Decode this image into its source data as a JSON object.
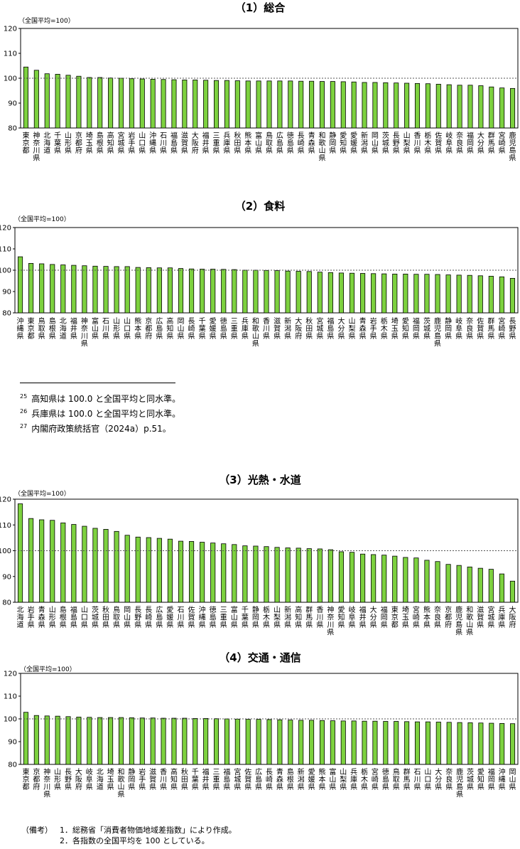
{
  "chart_data": [
    {
      "type": "bar",
      "title": "（1）総合",
      "note": "（全国平均=100）",
      "ylim": [
        80,
        120
      ],
      "yticks": [
        80,
        90,
        100,
        110,
        120
      ],
      "reference_line": 100,
      "categories": [
        "東京都",
        "神奈川県",
        "北海道",
        "千葉県",
        "山形県",
        "京都府",
        "埼玉県",
        "島根県",
        "高知県",
        "宮城県",
        "岩手県",
        "山口県",
        "沖縄県",
        "石川県",
        "福島県",
        "滋賀県",
        "大阪府",
        "福井県",
        "三重県",
        "兵庫県",
        "秋田県",
        "熊本県",
        "富山県",
        "鳥取県",
        "広島県",
        "徳島県",
        "長崎県",
        "青森県",
        "和歌山県",
        "静岡県",
        "愛知県",
        "愛媛県",
        "新潟県",
        "岡山県",
        "茨城県",
        "長野県",
        "山梨県",
        "香川県",
        "栃木県",
        "佐賀県",
        "岐阜県",
        "奈良県",
        "福岡県",
        "大分県",
        "群馬県",
        "宮崎県",
        "鹿児島県"
      ],
      "values": [
        104.5,
        103.2,
        101.8,
        101.6,
        101.2,
        100.8,
        100.3,
        100.3,
        100.1,
        100.0,
        99.8,
        99.7,
        99.6,
        99.5,
        99.4,
        99.3,
        99.3,
        99.2,
        99.1,
        99.1,
        99.0,
        98.9,
        98.9,
        98.9,
        98.9,
        98.9,
        98.8,
        98.8,
        98.7,
        98.7,
        98.6,
        98.5,
        98.3,
        98.3,
        98.2,
        98.1,
        98.0,
        97.9,
        97.8,
        97.6,
        97.4,
        97.2,
        97.2,
        97.0,
        96.5,
        96.1,
        95.9
      ]
    },
    {
      "type": "bar",
      "title": "（2）食料",
      "note": "（全国平均=100）",
      "ylim": [
        80,
        120
      ],
      "yticks": [
        80,
        90,
        100,
        110,
        120
      ],
      "reference_line": 100,
      "categories": [
        "沖縄県",
        "東京都",
        "鳥取県",
        "島根県",
        "北海道",
        "福井県",
        "神奈川県",
        "富山県",
        "石川県",
        "山形県",
        "山口県",
        "熊本県",
        "京都府",
        "広島県",
        "高知県",
        "岡山県",
        "長崎県",
        "千葉県",
        "愛媛県",
        "徳島県",
        "三重県",
        "兵庫県",
        "和歌山県",
        "香川県",
        "滋賀県",
        "新潟県",
        "大阪府",
        "秋田県",
        "宮城県",
        "福島県",
        "大分県",
        "山梨県",
        "青森県",
        "岩手県",
        "栃木県",
        "埼玉県",
        "愛知県",
        "福岡県",
        "茨城県",
        "鹿児島県",
        "静岡県",
        "岐阜県",
        "奈良県",
        "佐賀県",
        "群馬県",
        "宮崎県",
        "長野県"
      ],
      "values": [
        106.3,
        103.2,
        103.0,
        102.7,
        102.5,
        102.3,
        102.1,
        101.9,
        101.8,
        101.7,
        101.7,
        101.3,
        101.2,
        101.1,
        101.1,
        100.8,
        100.6,
        100.5,
        100.5,
        100.4,
        100.3,
        100.0,
        100.0,
        99.9,
        99.8,
        99.6,
        99.5,
        99.4,
        99.1,
        98.9,
        98.7,
        98.6,
        98.5,
        98.4,
        98.3,
        98.2,
        98.2,
        98.1,
        98.1,
        98.0,
        97.8,
        97.7,
        97.6,
        97.4,
        97.2,
        96.9,
        96.2
      ]
    },
    {
      "type": "bar",
      "title": "（3）光熱・水道",
      "note": "（全国平均=100）",
      "ylim": [
        80,
        120
      ],
      "yticks": [
        80,
        90,
        100,
        110,
        120
      ],
      "reference_line": 100,
      "categories": [
        "北海道",
        "岩手県",
        "青森県",
        "山形県",
        "島根県",
        "福島県",
        "山口県",
        "茨城県",
        "秋田県",
        "鳥取県",
        "岡山県",
        "長野県",
        "長崎県",
        "広島県",
        "愛媛県",
        "石川県",
        "佐賀県",
        "沖縄県",
        "徳島県",
        "三重県",
        "富山県",
        "千葉県",
        "静岡県",
        "栃木県",
        "山梨県",
        "新潟県",
        "高知県",
        "群馬県",
        "香川県",
        "神奈川県",
        "愛知県",
        "岐阜県",
        "福井県",
        "大分県",
        "福岡県",
        "東京都",
        "埼玉県",
        "宮崎県",
        "熊本県",
        "奈良県",
        "京都府",
        "鹿児島県",
        "和歌山県",
        "滋賀県",
        "宮城県",
        "兵庫県",
        "大阪府"
      ],
      "values": [
        118.2,
        112.5,
        112.0,
        111.8,
        110.8,
        110.2,
        109.5,
        108.7,
        108.3,
        107.5,
        106.0,
        105.3,
        105.1,
        104.8,
        104.5,
        103.7,
        103.6,
        103.3,
        103.0,
        102.7,
        102.4,
        101.9,
        101.8,
        101.6,
        101.3,
        101.1,
        101.0,
        100.8,
        100.7,
        100.4,
        99.6,
        99.4,
        98.7,
        98.5,
        98.3,
        97.9,
        97.4,
        97.2,
        96.3,
        95.8,
        94.7,
        94.3,
        93.7,
        93.2,
        92.8,
        91.0,
        88.2
      ]
    },
    {
      "type": "bar",
      "title": "（4）交通・通信",
      "note": "（全国平均=100）",
      "ylim": [
        80,
        120
      ],
      "yticks": [
        80,
        90,
        100,
        110,
        120
      ],
      "reference_line": 100,
      "categories": [
        "東京都",
        "京都府",
        "神奈川県",
        "山形県",
        "長野県",
        "大阪府",
        "岐阜県",
        "北海道",
        "埼玉県",
        "和歌山県",
        "静岡県",
        "岩手県",
        "滋賀県",
        "香川県",
        "高知県",
        "秋田県",
        "千葉県",
        "福井県",
        "三重県",
        "福島県",
        "宮城県",
        "佐賀県",
        "広島県",
        "長崎県",
        "青森県",
        "島根県",
        "新潟県",
        "愛媛県",
        "熊本県",
        "富山県",
        "山梨県",
        "兵庫県",
        "栃木県",
        "宮崎県",
        "徳島県",
        "鳥取県",
        "群馬県",
        "石川県",
        "山口県",
        "大分県",
        "奈良県",
        "鹿児島県",
        "茨城県",
        "愛知県",
        "福岡県",
        "沖縄県",
        "岡山県"
      ],
      "values": [
        102.9,
        101.5,
        101.3,
        101.2,
        101.0,
        100.8,
        100.7,
        100.6,
        100.6,
        100.6,
        100.5,
        100.4,
        100.4,
        100.3,
        100.3,
        100.3,
        100.2,
        100.2,
        100.1,
        100.0,
        99.9,
        99.8,
        99.8,
        99.7,
        99.6,
        99.5,
        99.4,
        99.4,
        99.3,
        99.2,
        99.1,
        99.1,
        99.0,
        99.0,
        98.9,
        98.9,
        98.8,
        98.7,
        98.7,
        98.6,
        98.5,
        98.4,
        98.3,
        98.2,
        98.1,
        98.0,
        97.9
      ]
    }
  ],
  "footnotes": [
    {
      "num": "25",
      "text": "高知県は 100.0 と全国平均と同水準。"
    },
    {
      "num": "26",
      "text": "兵庫県は 100.0 と全国平均と同水準。"
    },
    {
      "num": "27",
      "text": "内閣府政策統括官（2024a）p.51。"
    }
  ],
  "remarks": {
    "label": "（備考）",
    "items": [
      "1．総務省「消費者物価地域差指数」により作成。",
      "2．各指数の全国平均を 100 としている。"
    ]
  },
  "colors": {
    "bar_fill": "#7dd13f",
    "bar_stroke": "#000000",
    "reference_line": "#555555"
  }
}
